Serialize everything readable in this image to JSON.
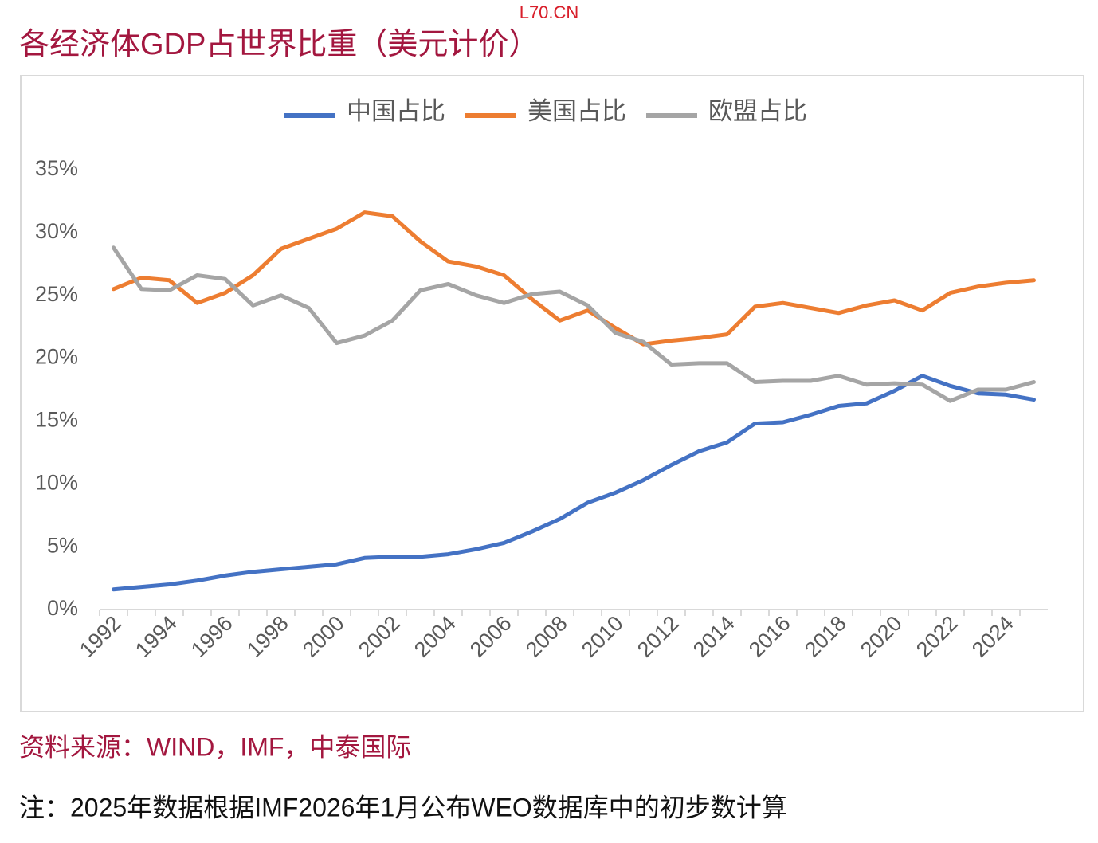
{
  "watermark": "L70.CN",
  "source": "资料来源：WIND，IMF，中泰国际",
  "note": "注：2025年数据根据IMF2026年1月公布WEO数据库中的初步数计算",
  "chart_data": {
    "type": "line",
    "title": "各经济体GDP占世界比重（美元计价）",
    "categories": [
      "1992",
      null,
      "1994",
      null,
      "1996",
      null,
      "1998",
      null,
      "2000",
      null,
      "2002",
      null,
      "2004",
      null,
      "2006",
      null,
      "2008",
      null,
      "2010",
      null,
      "2012",
      null,
      "2014",
      null,
      "2016",
      null,
      "2018",
      null,
      "2020",
      null,
      "2022",
      null,
      "2024",
      null
    ],
    "series": [
      {
        "name": "中国占比",
        "color": "#4472c4",
        "values": [
          1.6,
          1.8,
          2.0,
          2.3,
          2.7,
          3.0,
          3.2,
          3.4,
          3.6,
          4.1,
          4.2,
          4.2,
          4.4,
          4.8,
          5.3,
          6.2,
          7.2,
          8.5,
          9.3,
          10.3,
          11.5,
          12.6,
          13.3,
          14.8,
          14.9,
          15.5,
          16.2,
          16.4,
          17.4,
          18.6,
          17.8,
          17.2,
          17.1,
          16.7
        ]
      },
      {
        "name": "美国占比",
        "color": "#ed7d31",
        "values": [
          25.5,
          26.4,
          26.2,
          24.4,
          25.2,
          26.6,
          28.7,
          29.5,
          30.3,
          31.6,
          31.3,
          29.3,
          27.7,
          27.3,
          26.6,
          24.7,
          23.0,
          23.8,
          22.4,
          21.1,
          21.4,
          21.6,
          21.9,
          24.1,
          24.4,
          24.0,
          23.6,
          24.2,
          24.6,
          23.8,
          25.2,
          25.7,
          26.0,
          26.2
        ]
      },
      {
        "name": "欧盟占比",
        "color": "#a5a5a5",
        "values": [
          28.8,
          25.5,
          25.4,
          26.6,
          26.3,
          24.2,
          25.0,
          24.0,
          21.2,
          21.8,
          23.0,
          25.4,
          25.9,
          25.0,
          24.4,
          25.1,
          25.3,
          24.2,
          22.0,
          21.3,
          19.5,
          19.6,
          19.6,
          18.1,
          18.2,
          18.2,
          18.6,
          17.9,
          18.0,
          17.9,
          16.6,
          17.5,
          17.5,
          18.1
        ]
      }
    ],
    "ylim": [
      0,
      35
    ],
    "yticks": [
      {
        "value": 0,
        "label": "0%"
      },
      {
        "value": 5,
        "label": "5%"
      },
      {
        "value": 10,
        "label": "10%"
      },
      {
        "value": 15,
        "label": "15%"
      },
      {
        "value": 20,
        "label": "20%"
      },
      {
        "value": 25,
        "label": "25%"
      },
      {
        "value": 30,
        "label": "30%"
      },
      {
        "value": 35,
        "label": "35%"
      }
    ],
    "grid": false,
    "legend": "top"
  }
}
